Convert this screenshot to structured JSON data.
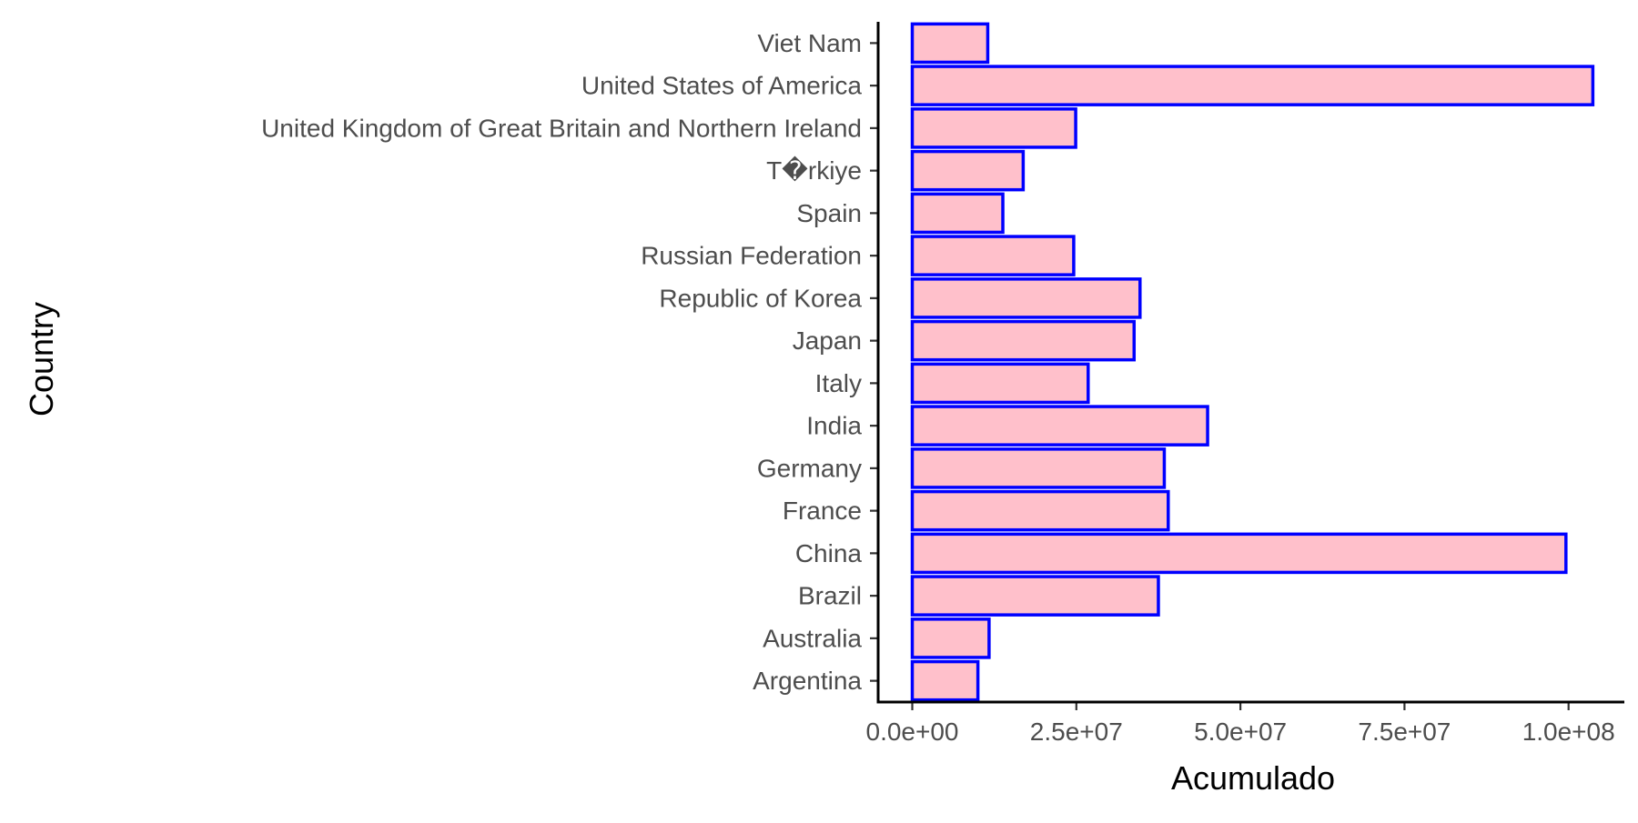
{
  "chart_data": {
    "type": "bar",
    "orientation": "horizontal",
    "categories": [
      "Argentina",
      "Australia",
      "Brazil",
      "China",
      "France",
      "Germany",
      "India",
      "Italy",
      "Japan",
      "Republic of Korea",
      "Russian Federation",
      "Spain",
      "T�rkiye",
      "United Kingdom of Great Britain and Northern Ireland",
      "United States of America",
      "Viet Nam"
    ],
    "values": [
      10000000,
      11700000,
      37500000,
      99600000,
      39000000,
      38400000,
      45000000,
      26800000,
      33800000,
      34700000,
      24600000,
      13800000,
      16900000,
      24900000,
      103700000,
      11500000
    ],
    "xlabel": "Acumulado",
    "ylabel": "Country",
    "xlim": [
      -5200000,
      108500000
    ],
    "xticks": [
      0,
      25000000,
      50000000,
      75000000,
      100000000
    ],
    "xtick_labels": [
      "0.0e+00",
      "2.5e+07",
      "5.0e+07",
      "7.5e+07",
      "1.0e+08"
    ],
    "grid": false,
    "bar_fill": "#FFC0CB",
    "bar_stroke": "#0000FF"
  }
}
